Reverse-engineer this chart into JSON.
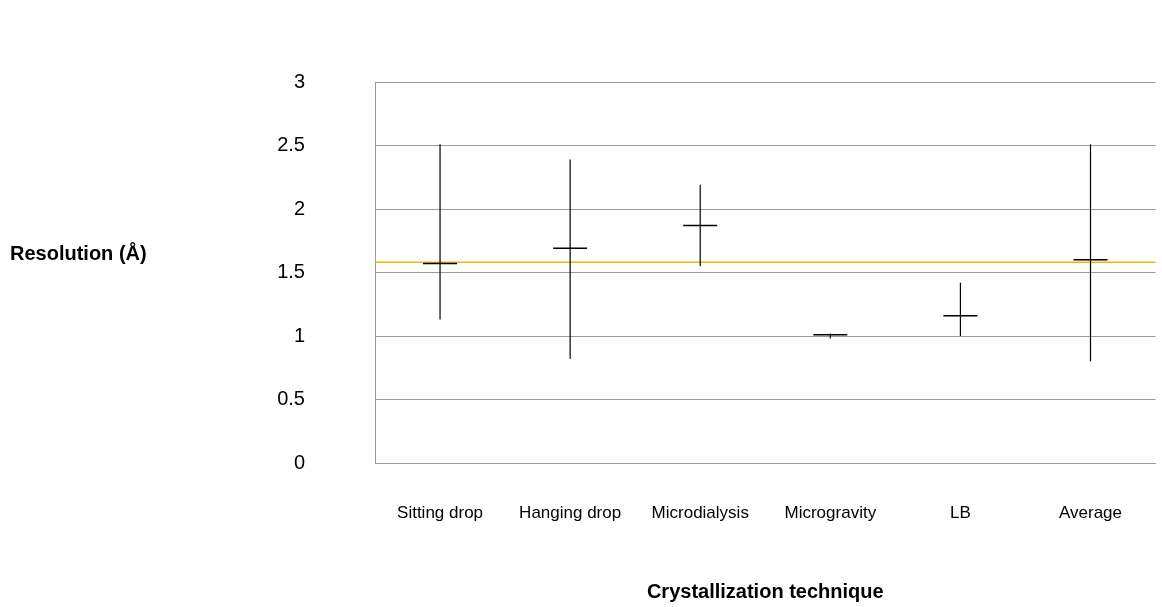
{
  "chart_data": {
    "type": "candlestick",
    "xlabel": "Crystallization technique",
    "annotations": [
      "Resolution (Å)"
    ],
    "categories": [
      "Sitting drop",
      "Hanging drop",
      "Microdialysis",
      "Microgravity",
      "LB",
      "Average"
    ],
    "ohlc": [
      [
        1.57,
        2.51,
        1.13,
        1.57
      ],
      [
        1.69,
        2.39,
        0.82,
        1.69
      ],
      [
        1.87,
        2.19,
        1.55,
        1.87
      ],
      [
        1.01,
        1.02,
        0.98,
        1.01
      ],
      [
        1.16,
        1.42,
        1.0,
        1.16
      ],
      [
        1.6,
        2.51,
        0.8,
        1.6
      ]
    ],
    "color": "#000000",
    "ylim": [
      0,
      3
    ],
    "yticks": [
      0,
      0.5,
      1,
      1.5,
      2,
      2.5,
      3
    ],
    "grid": "y",
    "ref_lines": [
      {
        "axis": "y",
        "value": 1.58,
        "color": "#f5b800"
      }
    ]
  }
}
